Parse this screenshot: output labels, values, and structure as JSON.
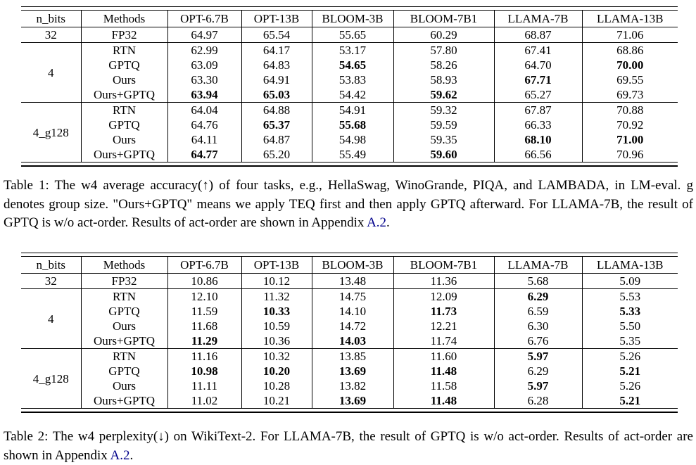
{
  "link_color": "#00008B",
  "table1": {
    "headers": [
      "n_bits",
      "Methods",
      "OPT-6.7B",
      "OPT-13B",
      "BLOOM-3B",
      "BLOOM-7B1",
      "LLAMA-7B",
      "LLAMA-13B"
    ],
    "groups": [
      {
        "label": "32",
        "rows": [
          {
            "method": "FP32",
            "values": [
              "64.97",
              "65.54",
              "55.65",
              "60.29",
              "68.87",
              "71.06"
            ],
            "bold": [
              0,
              0,
              0,
              0,
              0,
              0
            ]
          }
        ]
      },
      {
        "label": "4",
        "rows": [
          {
            "method": "RTN",
            "values": [
              "62.99",
              "64.17",
              "53.17",
              "57.80",
              "67.41",
              "68.86"
            ],
            "bold": [
              0,
              0,
              0,
              0,
              0,
              0
            ]
          },
          {
            "method": "GPTQ",
            "values": [
              "63.09",
              "64.83",
              "54.65",
              "58.26",
              "64.70",
              "70.00"
            ],
            "bold": [
              0,
              0,
              1,
              0,
              0,
              1
            ]
          },
          {
            "method": "Ours",
            "values": [
              "63.30",
              "64.91",
              "53.83",
              "58.93",
              "67.71",
              "69.55"
            ],
            "bold": [
              0,
              0,
              0,
              0,
              1,
              0
            ]
          },
          {
            "method": "Ours+GPTQ",
            "values": [
              "63.94",
              "65.03",
              "54.42",
              "59.62",
              "65.27",
              "69.73"
            ],
            "bold": [
              1,
              1,
              0,
              1,
              0,
              0
            ]
          }
        ]
      },
      {
        "label": "4_g128",
        "rows": [
          {
            "method": "RTN",
            "values": [
              "64.04",
              "64.88",
              "54.91",
              "59.32",
              "67.87",
              "70.88"
            ],
            "bold": [
              0,
              0,
              0,
              0,
              0,
              0
            ]
          },
          {
            "method": "GPTQ",
            "values": [
              "64.76",
              "65.37",
              "55.68",
              "59.59",
              "66.33",
              "70.92"
            ],
            "bold": [
              0,
              1,
              1,
              0,
              0,
              0
            ]
          },
          {
            "method": "Ours",
            "values": [
              "64.11",
              "64.87",
              "54.98",
              "59.35",
              "68.10",
              "71.00"
            ],
            "bold": [
              0,
              0,
              0,
              0,
              1,
              1
            ]
          },
          {
            "method": "Ours+GPTQ",
            "values": [
              "64.77",
              "65.20",
              "55.49",
              "59.60",
              "66.56",
              "70.96"
            ],
            "bold": [
              1,
              0,
              0,
              1,
              0,
              0
            ]
          }
        ]
      }
    ],
    "caption": [
      {
        "t": "Table 1: The w4 average accuracy(↑) of four tasks, e.g., HellaSwag, WinoGrande, PIQA, and LAMBADA, in LM-eval. g denotes group size. \"Ours+GPTQ\" means we apply TEQ first and then apply GPTQ afterward. For LLAMA-7B, the result of GPTQ is w/o act-order. Results of act-order are shown in Appendix ",
        "link": false
      },
      {
        "t": "A.2",
        "link": true
      },
      {
        "t": ".",
        "link": false
      }
    ]
  },
  "table2": {
    "headers": [
      "n_bits",
      "Methods",
      "OPT-6.7B",
      "OPT-13B",
      "BLOOM-3B",
      "BLOOM-7B1",
      "LLAMA-7B",
      "LLAMA-13B"
    ],
    "groups": [
      {
        "label": "32",
        "rows": [
          {
            "method": "FP32",
            "values": [
              "10.86",
              "10.12",
              "13.48",
              "11.36",
              "5.68",
              "5.09"
            ],
            "bold": [
              0,
              0,
              0,
              0,
              0,
              0
            ]
          }
        ]
      },
      {
        "label": "4",
        "rows": [
          {
            "method": "RTN",
            "values": [
              "12.10",
              "11.32",
              "14.75",
              "12.09",
              "6.29",
              "5.53"
            ],
            "bold": [
              0,
              0,
              0,
              0,
              1,
              0
            ]
          },
          {
            "method": "GPTQ",
            "values": [
              "11.59",
              "10.33",
              "14.10",
              "11.73",
              "6.59",
              "5.33"
            ],
            "bold": [
              0,
              1,
              0,
              1,
              0,
              1
            ]
          },
          {
            "method": "Ours",
            "values": [
              "11.68",
              "10.59",
              "14.72",
              "12.21",
              "6.30",
              "5.50"
            ],
            "bold": [
              0,
              0,
              0,
              0,
              0,
              0
            ]
          },
          {
            "method": "Ours+GPTQ",
            "values": [
              "11.29",
              "10.36",
              "14.03",
              "11.74",
              "6.76",
              "5.35"
            ],
            "bold": [
              1,
              0,
              1,
              0,
              0,
              0
            ]
          }
        ]
      },
      {
        "label": "4_g128",
        "rows": [
          {
            "method": "RTN",
            "values": [
              "11.16",
              "10.32",
              "13.85",
              "11.60",
              "5.97",
              "5.26"
            ],
            "bold": [
              0,
              0,
              0,
              0,
              1,
              0
            ]
          },
          {
            "method": "GPTQ",
            "values": [
              "10.98",
              "10.20",
              "13.69",
              "11.48",
              "6.29",
              "5.21"
            ],
            "bold": [
              1,
              1,
              1,
              1,
              0,
              1
            ]
          },
          {
            "method": "Ours",
            "values": [
              "11.11",
              "10.28",
              "13.82",
              "11.58",
              "5.97",
              "5.26"
            ],
            "bold": [
              0,
              0,
              0,
              0,
              1,
              0
            ]
          },
          {
            "method": "Ours+GPTQ",
            "values": [
              "11.02",
              "10.21",
              "13.69",
              "11.48",
              "6.28",
              "5.21"
            ],
            "bold": [
              0,
              0,
              1,
              1,
              0,
              1
            ]
          }
        ]
      }
    ],
    "caption": [
      {
        "t": "Table 2: The w4 perplexity(↓) on WikiText-2. For LLAMA-7B, the result of GPTQ is w/o act-order. Results of act-order are shown in Appendix ",
        "link": false
      },
      {
        "t": "A.2",
        "link": true
      },
      {
        "t": ".",
        "link": false
      }
    ]
  }
}
